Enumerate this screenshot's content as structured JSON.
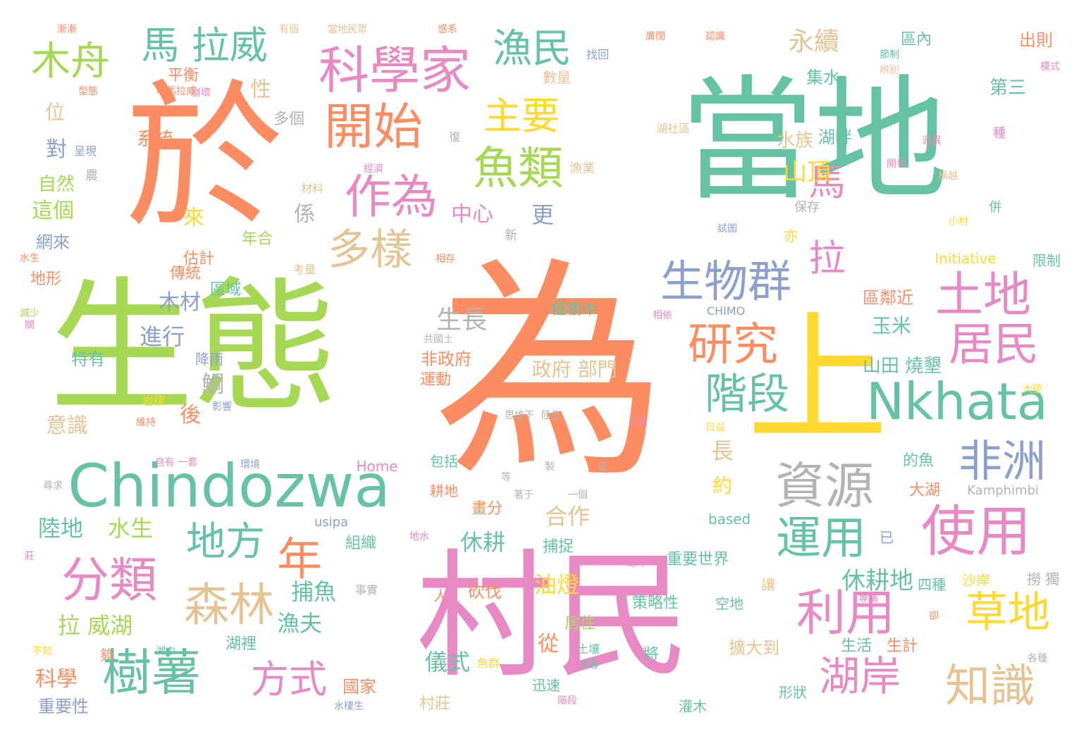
{
  "palette": {
    "green": "#66c2a5",
    "orange": "#fc8d62",
    "blue": "#8da0cb",
    "pink": "#e78ac3",
    "lime": "#a6d854",
    "yellow": "#ffd92f",
    "tan": "#e5c494",
    "gray": "#b3b3b3"
  },
  "words": [
    {
      "text": "當地",
      "size": 190,
      "color": "green",
      "v": false
    },
    {
      "text": "於",
      "size": 225,
      "color": "orange",
      "v": false
    },
    {
      "text": "生態",
      "size": 205,
      "color": "lime",
      "v": false
    },
    {
      "text": "為",
      "size": 330,
      "color": "orange",
      "v": false
    },
    {
      "text": "村民",
      "size": 195,
      "color": "pink",
      "v": false
    },
    {
      "text": "上",
      "size": 200,
      "color": "yellow",
      "v": false
    },
    {
      "text": "Chindozwa",
      "size": 84,
      "color": "green",
      "v": false
    },
    {
      "text": "Nkhata",
      "size": 72,
      "color": "green",
      "v": false
    },
    {
      "text": "科學家",
      "size": 72,
      "color": "pink",
      "v": false
    },
    {
      "text": "開始",
      "size": 70,
      "color": "orange",
      "v": false
    },
    {
      "text": "作為",
      "size": 66,
      "color": "pink",
      "v": false
    },
    {
      "text": "魚類",
      "size": 64,
      "color": "lime",
      "v": false
    },
    {
      "text": "漁民",
      "size": 56,
      "color": "green",
      "v": false
    },
    {
      "text": "主要",
      "size": 54,
      "color": "yellow",
      "v": false
    },
    {
      "text": "馬 拉威",
      "size": 54,
      "color": "green",
      "v": false
    },
    {
      "text": "木舟",
      "size": 56,
      "color": "lime",
      "v": false
    },
    {
      "text": "多樣",
      "size": 60,
      "color": "tan",
      "v": false
    },
    {
      "text": "生物群",
      "size": 62,
      "color": "blue",
      "v": false
    },
    {
      "text": "研究",
      "size": 64,
      "color": "orange",
      "v": false
    },
    {
      "text": "階段",
      "size": 60,
      "color": "green",
      "v": false
    },
    {
      "text": "土地",
      "size": 68,
      "color": "pink",
      "v": false
    },
    {
      "text": "居民",
      "size": 64,
      "color": "pink",
      "v": false
    },
    {
      "text": "資源",
      "size": 70,
      "color": "gray",
      "v": false
    },
    {
      "text": "非洲",
      "size": 62,
      "color": "blue",
      "v": false
    },
    {
      "text": "使用",
      "size": 78,
      "color": "pink",
      "v": false
    },
    {
      "text": "運用",
      "size": 64,
      "color": "green",
      "v": false
    },
    {
      "text": "利用",
      "size": 70,
      "color": "pink",
      "v": false
    },
    {
      "text": "草地",
      "size": 60,
      "color": "yellow",
      "v": false
    },
    {
      "text": "湖岸",
      "size": 58,
      "color": "pink",
      "v": false
    },
    {
      "text": "知識",
      "size": 64,
      "color": "tan",
      "v": false
    },
    {
      "text": "馬 拉",
      "size": 52,
      "color": "pink",
      "v": true
    },
    {
      "text": "地方",
      "size": 56,
      "color": "green",
      "v": false
    },
    {
      "text": "年",
      "size": 64,
      "color": "orange",
      "v": false
    },
    {
      "text": "分類",
      "size": 68,
      "color": "pink",
      "v": false
    },
    {
      "text": "森林",
      "size": 64,
      "color": "tan",
      "v": false
    },
    {
      "text": "樹薯",
      "size": 70,
      "color": "green",
      "v": false
    },
    {
      "text": "方式",
      "size": 54,
      "color": "pink",
      "v": false
    },
    {
      "text": "永續",
      "size": 36,
      "color": "tan",
      "v": false
    },
    {
      "text": "山頂",
      "size": 34,
      "color": "yellow",
      "v": false
    },
    {
      "text": "水族",
      "size": 26,
      "color": "tan",
      "v": false
    },
    {
      "text": "湖畔",
      "size": 24,
      "color": "green",
      "v": false
    },
    {
      "text": "集水",
      "size": 24,
      "color": "green",
      "v": false
    },
    {
      "text": "第三",
      "size": 26,
      "color": "green",
      "v": false
    },
    {
      "text": "出則",
      "size": 24,
      "color": "orange",
      "v": false
    },
    {
      "text": "區內",
      "size": 22,
      "color": "green",
      "v": false
    },
    {
      "text": "中心",
      "size": 30,
      "color": "pink",
      "v": false
    },
    {
      "text": "更",
      "size": 32,
      "color": "blue",
      "v": false
    },
    {
      "text": "係",
      "size": 30,
      "color": "gray",
      "v": false
    },
    {
      "text": "性",
      "size": 30,
      "color": "tan",
      "v": false
    },
    {
      "text": "多個",
      "size": 22,
      "color": "gray",
      "v": false
    },
    {
      "text": "系統",
      "size": 26,
      "color": "orange",
      "v": false
    },
    {
      "text": "平衡",
      "size": 22,
      "color": "orange",
      "v": false
    },
    {
      "text": "數量",
      "size": 20,
      "color": "tan",
      "v": false
    },
    {
      "text": "位",
      "size": 28,
      "color": "tan",
      "v": false
    },
    {
      "text": "對",
      "size": 30,
      "color": "blue",
      "v": false
    },
    {
      "text": "自然",
      "size": 26,
      "color": "lime",
      "v": false
    },
    {
      "text": "這個",
      "size": 30,
      "color": "lime",
      "v": false
    },
    {
      "text": "網來",
      "size": 24,
      "color": "blue",
      "v": false
    },
    {
      "text": "地形",
      "size": 22,
      "color": "orange",
      "v": false
    },
    {
      "text": "來",
      "size": 30,
      "color": "yellow",
      "v": false
    },
    {
      "text": "年合",
      "size": 22,
      "color": "lime",
      "v": false
    },
    {
      "text": "估計",
      "size": 22,
      "color": "orange",
      "v": false
    },
    {
      "text": "傳統",
      "size": 22,
      "color": "orange",
      "v": false
    },
    {
      "text": "區域",
      "size": 22,
      "color": "green",
      "v": false
    },
    {
      "text": "木材",
      "size": 30,
      "color": "blue",
      "v": false
    },
    {
      "text": "生長",
      "size": 36,
      "color": "gray",
      "v": false
    },
    {
      "text": "進行",
      "size": 32,
      "color": "blue",
      "v": false
    },
    {
      "text": "特有",
      "size": 24,
      "color": "green",
      "v": false
    },
    {
      "text": "降雨",
      "size": 20,
      "color": "blue",
      "v": false
    },
    {
      "text": "鯛",
      "size": 32,
      "color": "gray",
      "v": false
    },
    {
      "text": "後",
      "size": 30,
      "color": "orange",
      "v": false
    },
    {
      "text": "意識",
      "size": 30,
      "color": "tan",
      "v": false
    },
    {
      "text": "政府 部門",
      "size": 28,
      "color": "tan",
      "v": false
    },
    {
      "text": "植樹木",
      "size": 22,
      "color": "green",
      "v": false
    },
    {
      "text": "非政府",
      "size": 24,
      "color": "orange",
      "v": false
    },
    {
      "text": "運動",
      "size": 22,
      "color": "orange",
      "v": false
    },
    {
      "text": "山田 燒墾",
      "size": 26,
      "color": "green",
      "v": false
    },
    {
      "text": "區鄰近",
      "size": 24,
      "color": "orange",
      "v": false
    },
    {
      "text": "玉米",
      "size": 28,
      "color": "green",
      "v": false
    },
    {
      "text": "長",
      "size": 32,
      "color": "tan",
      "v": false
    },
    {
      "text": "約",
      "size": 28,
      "color": "yellow",
      "v": false
    },
    {
      "text": "合作",
      "size": 32,
      "color": "tan",
      "v": false
    },
    {
      "text": "休耕",
      "size": 32,
      "color": "green",
      "v": false
    },
    {
      "text": "陸地",
      "size": 32,
      "color": "green",
      "v": false
    },
    {
      "text": "水生",
      "size": 32,
      "color": "lime",
      "v": false
    },
    {
      "text": "休耕地",
      "size": 34,
      "color": "green",
      "v": false
    },
    {
      "text": "油燈",
      "size": 32,
      "color": "yellow",
      "v": false
    },
    {
      "text": "捕魚",
      "size": 32,
      "color": "green",
      "v": false
    },
    {
      "text": "拉 威湖",
      "size": 32,
      "color": "lime",
      "v": false
    },
    {
      "text": "漁夫",
      "size": 32,
      "color": "green",
      "v": false
    },
    {
      "text": "從",
      "size": 30,
      "color": "orange",
      "v": false
    },
    {
      "text": "儀式",
      "size": 32,
      "color": "green",
      "v": false
    },
    {
      "text": "科學",
      "size": 30,
      "color": "orange",
      "v": false
    },
    {
      "text": "重要性",
      "size": 24,
      "color": "blue",
      "v": false
    },
    {
      "text": "國家",
      "size": 24,
      "color": "orange",
      "v": false
    },
    {
      "text": "村莊",
      "size": 22,
      "color": "tan",
      "v": false
    },
    {
      "text": "湖裡",
      "size": 22,
      "color": "green",
      "v": false
    },
    {
      "text": "居住",
      "size": 22,
      "color": "lime",
      "v": false
    },
    {
      "text": "組織",
      "size": 22,
      "color": "green",
      "v": false
    },
    {
      "text": "捕捉",
      "size": 22,
      "color": "green",
      "v": false
    },
    {
      "text": "砍伐",
      "size": 24,
      "color": "orange",
      "v": false
    },
    {
      "text": "畫分",
      "size": 22,
      "color": "orange",
      "v": false
    },
    {
      "text": "耕地",
      "size": 20,
      "color": "orange",
      "v": false
    },
    {
      "text": "重要世界",
      "size": 22,
      "color": "green",
      "v": false
    },
    {
      "text": "策略性",
      "size": 22,
      "color": "green",
      "v": false
    },
    {
      "text": "空地",
      "size": 20,
      "color": "green",
      "v": false
    },
    {
      "text": "擴大到",
      "size": 24,
      "color": "tan",
      "v": false
    },
    {
      "text": "將",
      "size": 22,
      "color": "green",
      "v": false
    },
    {
      "text": "灌木",
      "size": 20,
      "color": "green",
      "v": false
    },
    {
      "text": "迅速",
      "size": 20,
      "color": "green",
      "v": false
    },
    {
      "text": "形狀",
      "size": 20,
      "color": "green",
      "v": false
    },
    {
      "text": "生活",
      "size": 22,
      "color": "green",
      "v": false
    },
    {
      "text": "生計",
      "size": 22,
      "color": "orange",
      "v": false
    },
    {
      "text": "讓",
      "size": 20,
      "color": "tan",
      "v": false
    },
    {
      "text": "沙岸",
      "size": 20,
      "color": "yellow",
      "v": false
    },
    {
      "text": "撈 獨",
      "size": 20,
      "color": "gray",
      "v": false
    },
    {
      "text": "四種",
      "size": 20,
      "color": "green",
      "v": false
    },
    {
      "text": "大湖",
      "size": 22,
      "color": "orange",
      "v": false
    },
    {
      "text": "的魚",
      "size": 22,
      "color": "green",
      "v": false
    },
    {
      "text": "已",
      "size": 20,
      "color": "blue",
      "v": false
    },
    {
      "text": "Kamphimbi",
      "size": 18,
      "color": "gray",
      "v": false
    },
    {
      "text": "based",
      "size": 20,
      "color": "green",
      "v": false
    },
    {
      "text": "usipa",
      "size": 18,
      "color": "blue",
      "v": false
    },
    {
      "text": "包括",
      "size": 20,
      "color": "green",
      "v": false
    },
    {
      "text": "Home",
      "size": 20,
      "color": "pink",
      "v": false
    },
    {
      "text": "CHIMO",
      "size": 16,
      "color": "blue",
      "v": false
    },
    {
      "text": "Initiative",
      "size": 20,
      "color": "yellow",
      "v": false
    },
    {
      "text": "限制",
      "size": 20,
      "color": "green",
      "v": false
    },
    {
      "text": "亦",
      "size": 20,
      "color": "yellow",
      "v": false
    },
    {
      "text": "保存",
      "size": 18,
      "color": "gray",
      "v": false
    },
    {
      "text": "併",
      "size": 18,
      "color": "green",
      "v": false
    },
    {
      "text": "種",
      "size": 18,
      "color": "pink",
      "v": false
    },
    {
      "text": "新",
      "size": 18,
      "color": "gray",
      "v": false
    },
    {
      "text": "材料",
      "size": 16,
      "color": "tan",
      "v": false
    },
    {
      "text": "考量",
      "size": 16,
      "color": "tan",
      "v": false
    },
    {
      "text": "相存",
      "size": 14,
      "color": "orange",
      "v": false
    },
    {
      "text": "漁業",
      "size": 18,
      "color": "tan",
      "v": false
    },
    {
      "text": "復",
      "size": 16,
      "color": "gray",
      "v": false
    },
    {
      "text": "找回",
      "size": 16,
      "color": "blue",
      "v": false
    },
    {
      "text": "湖社區",
      "size": 16,
      "color": "tan",
      "v": false
    },
    {
      "text": "試圖",
      "size": 14,
      "color": "blue",
      "v": false
    },
    {
      "text": "呈現",
      "size": 16,
      "color": "blue",
      "v": false
    },
    {
      "text": "農",
      "size": 18,
      "color": "gray",
      "v": false
    },
    {
      "text": "經濟",
      "size": 14,
      "color": "pink",
      "v": false
    },
    {
      "text": "崩壞",
      "size": 14,
      "color": "pink",
      "v": false
    },
    {
      "text": "叫馬拉威",
      "size": 14,
      "color": "orange",
      "v": false
    },
    {
      "text": "型態",
      "size": 14,
      "color": "orange",
      "v": false
    },
    {
      "text": "漸漸",
      "size": 14,
      "color": "orange",
      "v": false
    },
    {
      "text": "有個",
      "size": 14,
      "color": "tan",
      "v": false
    },
    {
      "text": "當地民眾",
      "size": 14,
      "color": "tan",
      "v": false
    },
    {
      "text": "感系",
      "size": 14,
      "color": "orange",
      "v": false
    },
    {
      "text": "廣闊",
      "size": 14,
      "color": "orange",
      "v": false
    },
    {
      "text": "認識",
      "size": 14,
      "color": "orange",
      "v": false
    },
    {
      "text": "節制",
      "size": 14,
      "color": "green",
      "v": false
    },
    {
      "text": "辨別",
      "size": 14,
      "color": "tan",
      "v": false
    },
    {
      "text": "模式",
      "size": 14,
      "color": "pink",
      "v": false
    },
    {
      "text": "迥異",
      "size": 14,
      "color": "pink",
      "v": false
    },
    {
      "text": "開發",
      "size": 14,
      "color": "pink",
      "v": false
    },
    {
      "text": "橫越",
      "size": 14,
      "color": "tan",
      "v": false
    },
    {
      "text": "小村",
      "size": 14,
      "color": "yellow",
      "v": false
    },
    {
      "text": "水生",
      "size": 14,
      "color": "orange",
      "v": false
    },
    {
      "text": "減少",
      "size": 14,
      "color": "lime",
      "v": false
    },
    {
      "text": "關",
      "size": 14,
      "color": "pink",
      "v": false
    },
    {
      "text": "相依",
      "size": 14,
      "color": "pink",
      "v": false
    },
    {
      "text": "共國土",
      "size": 14,
      "color": "gray",
      "v": false
    },
    {
      "text": "思維下",
      "size": 14,
      "color": "gray",
      "v": false
    },
    {
      "text": "陸生",
      "size": 14,
      "color": "gray",
      "v": false
    },
    {
      "text": "岩棲",
      "size": 16,
      "color": "yellow",
      "v": false
    },
    {
      "text": "維持",
      "size": 14,
      "color": "orange",
      "v": false
    },
    {
      "text": "影響",
      "size": 14,
      "color": "blue",
      "v": false
    },
    {
      "text": "人民",
      "size": 14,
      "color": "pink",
      "v": false
    },
    {
      "text": "日益",
      "size": 14,
      "color": "yellow",
      "v": false
    },
    {
      "text": "大陸",
      "size": 14,
      "color": "yellow",
      "v": false
    },
    {
      "text": "自有 一套",
      "size": 14,
      "color": "pink",
      "v": false
    },
    {
      "text": "環境",
      "size": 14,
      "color": "blue",
      "v": false
    },
    {
      "text": "尋求",
      "size": 14,
      "color": "gray",
      "v": false
    },
    {
      "text": "製",
      "size": 14,
      "color": "gray",
      "v": false
    },
    {
      "text": "恢",
      "size": 14,
      "color": "gray",
      "v": false
    },
    {
      "text": "一個",
      "size": 14,
      "color": "gray",
      "v": false
    },
    {
      "text": "等",
      "size": 14,
      "color": "gray",
      "v": false
    },
    {
      "text": "著于",
      "size": 14,
      "color": "gray",
      "v": false
    },
    {
      "text": "地水",
      "size": 14,
      "color": "pink",
      "v": false
    },
    {
      "text": "莊",
      "size": 14,
      "color": "pink",
      "v": false
    },
    {
      "text": "原本",
      "size": 14,
      "color": "pink",
      "v": false
    },
    {
      "text": "事實",
      "size": 16,
      "color": "gray",
      "v": false
    },
    {
      "text": "人",
      "size": 20,
      "color": "orange",
      "v": false
    },
    {
      "text": "專橫",
      "size": 14,
      "color": "pink",
      "v": false
    },
    {
      "text": "卻",
      "size": 14,
      "color": "orange",
      "v": false
    },
    {
      "text": "各種",
      "size": 14,
      "color": "gray",
      "v": false
    },
    {
      "text": "不知",
      "size": 14,
      "color": "yellow",
      "v": false
    },
    {
      "text": "湖中",
      "size": 14,
      "color": "green",
      "v": false
    },
    {
      "text": "夠",
      "size": 20,
      "color": "orange",
      "v": false
    },
    {
      "text": "魚群",
      "size": 16,
      "color": "yellow",
      "v": false
    },
    {
      "text": "土壤",
      "size": 16,
      "color": "green",
      "v": false
    },
    {
      "text": "本週",
      "size": 14,
      "color": "green",
      "v": false
    },
    {
      "text": "水棲生",
      "size": 14,
      "color": "blue",
      "v": false
    },
    {
      "text": "階段",
      "size": 14,
      "color": "pink",
      "v": false
    }
  ]
}
